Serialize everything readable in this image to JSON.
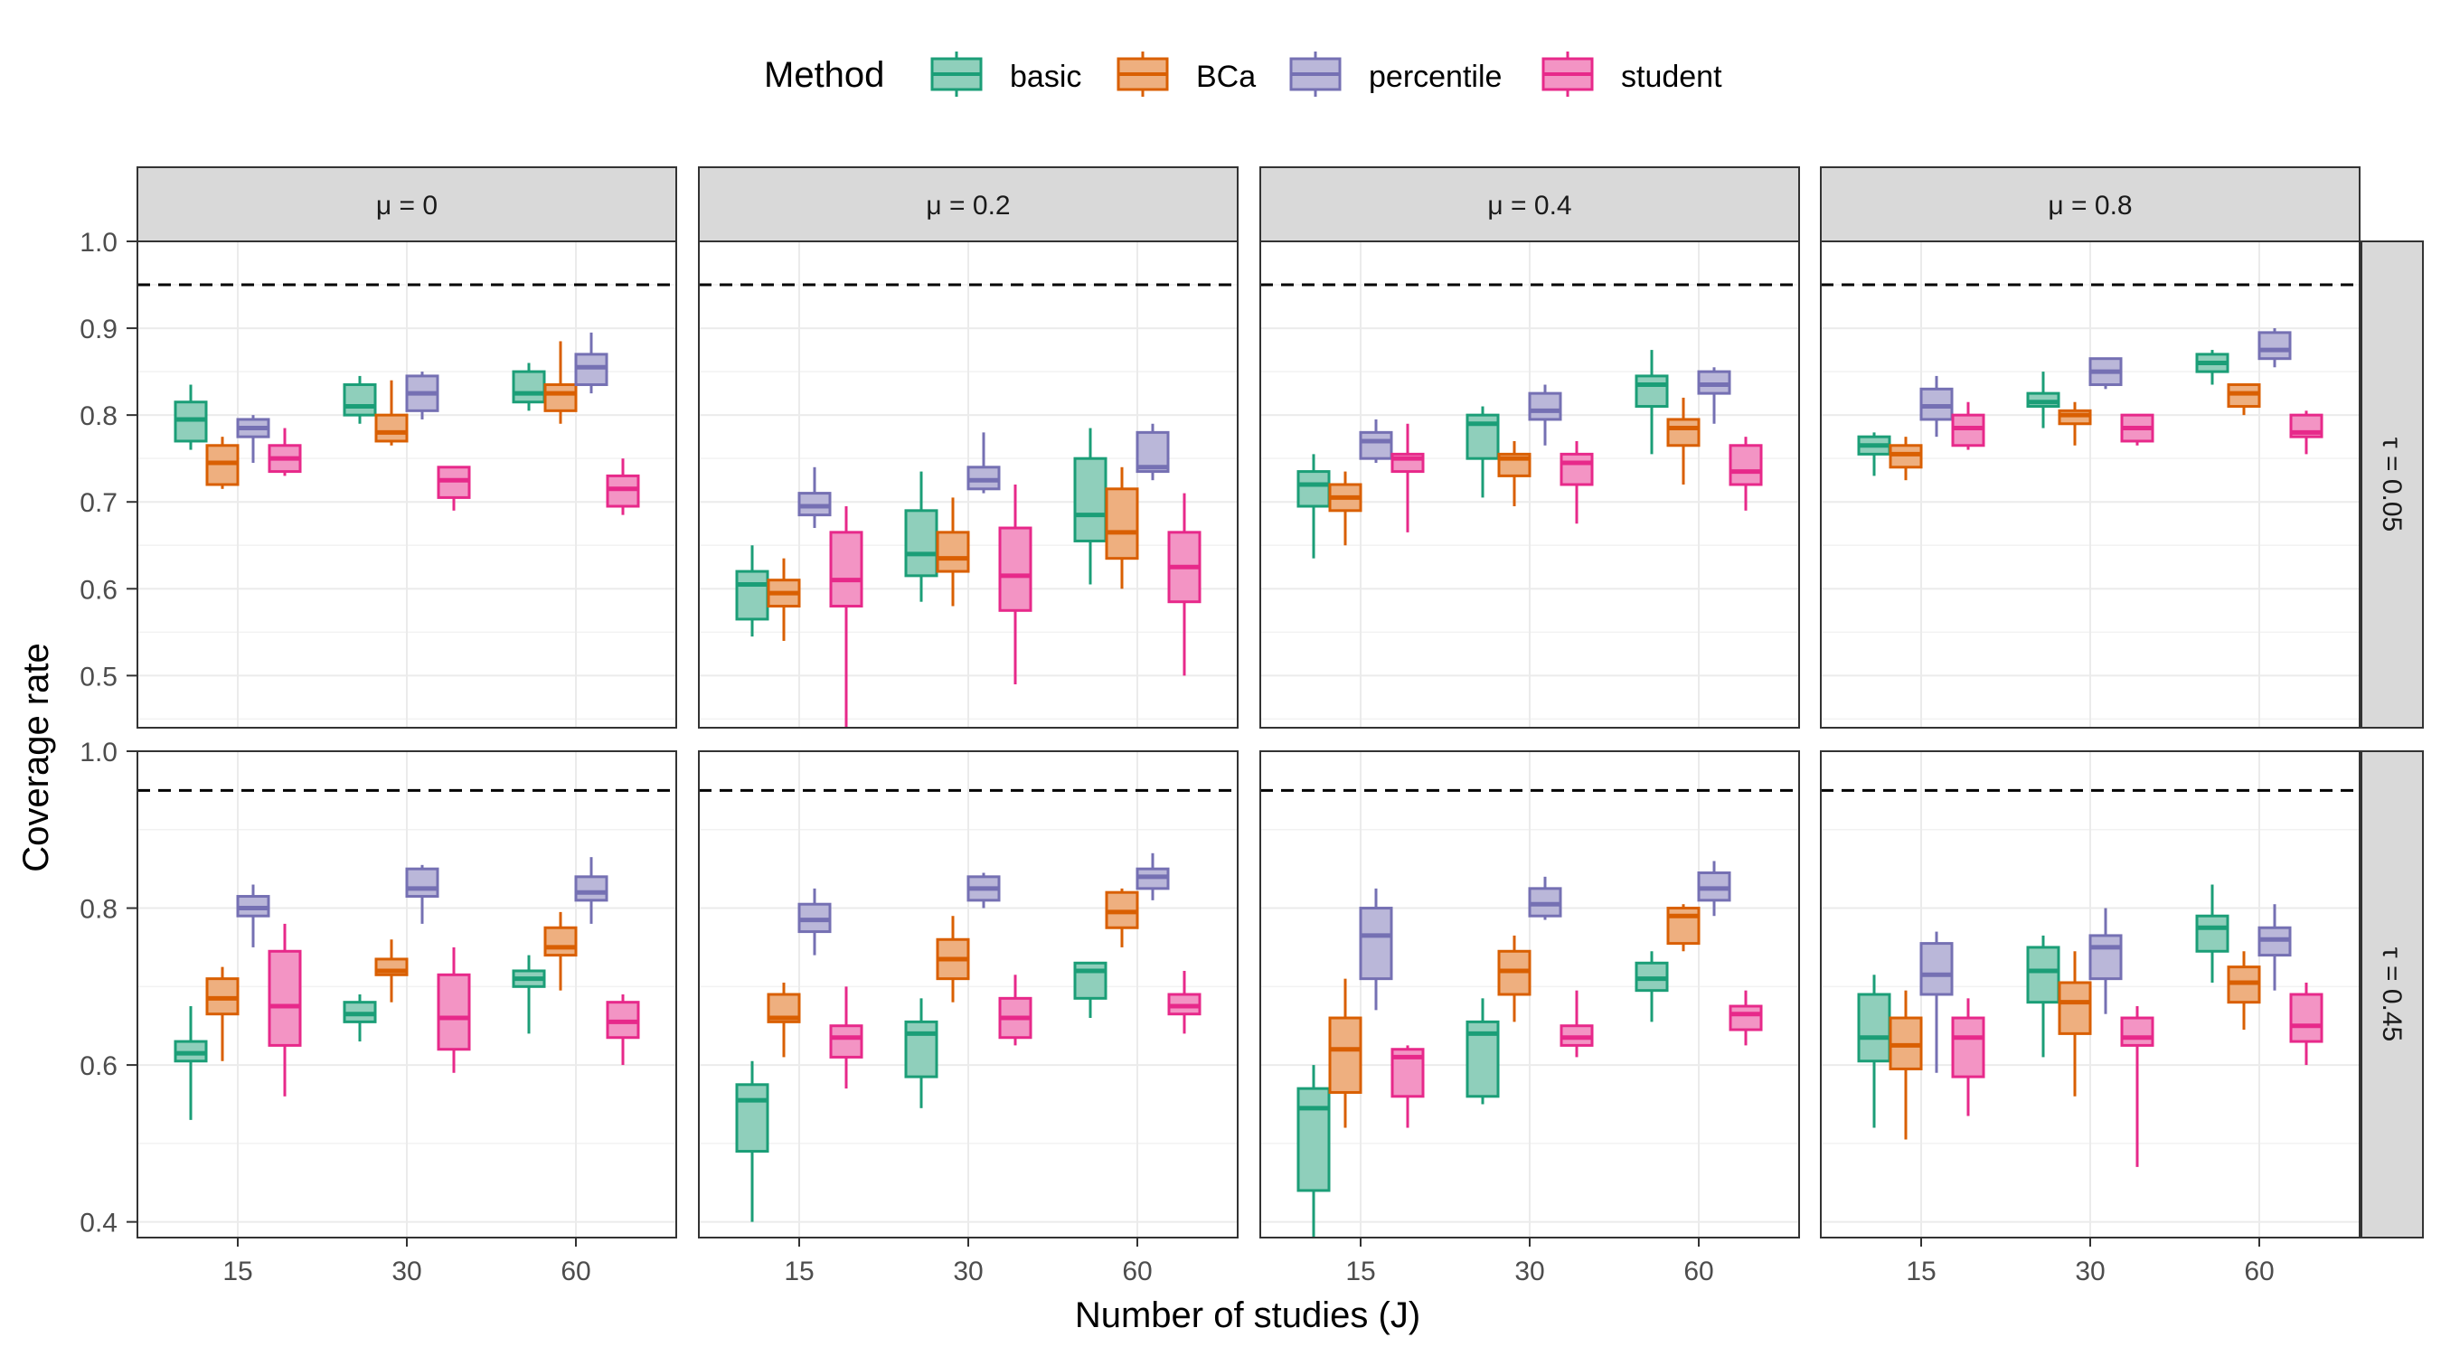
{
  "chart_data": {
    "type": "boxplot",
    "xlabel": "Number of studies (J)",
    "ylabel": "Coverage rate",
    "reference_line": 0.95,
    "categories": [
      "15",
      "30",
      "60"
    ],
    "legend": {
      "title": "Method",
      "position": "top",
      "items": [
        {
          "name": "basic",
          "color": "#1b9e77",
          "fill": "#8fcfbb"
        },
        {
          "name": "BCa",
          "color": "#d95f02",
          "fill": "#eeaf7f"
        },
        {
          "name": "percentile",
          "color": "#7570b3",
          "fill": "#bab7d9"
        },
        {
          "name": "student",
          "color": "#e7298a",
          "fill": "#f394c4"
        }
      ]
    },
    "columns": [
      {
        "label": "μ = 0"
      },
      {
        "label": "μ = 0.2"
      },
      {
        "label": "μ = 0.4"
      },
      {
        "label": "μ = 0.8"
      }
    ],
    "rows": [
      {
        "label": "τ = 0.05",
        "ylim": [
          0.44,
          1.0
        ],
        "yticks": [
          "0.5",
          "0.6",
          "0.7",
          "0.8",
          "0.9",
          "1.0"
        ]
      },
      {
        "label": "τ = 0.45",
        "ylim": [
          0.38,
          1.0
        ],
        "yticks": [
          "0.4",
          "0.6",
          "0.8",
          "1.0"
        ]
      }
    ],
    "boxes": [
      [
        [
          [
            [
              0.76,
              0.77,
              0.795,
              0.815,
              0.835
            ],
            [
              0.715,
              0.72,
              0.745,
              0.765,
              0.775
            ],
            [
              0.745,
              0.775,
              0.785,
              0.795,
              0.8
            ],
            [
              0.73,
              0.735,
              0.75,
              0.765,
              0.785
            ]
          ],
          [
            [
              0.79,
              0.8,
              0.81,
              0.835,
              0.845
            ],
            [
              0.765,
              0.77,
              0.78,
              0.8,
              0.84
            ],
            [
              0.795,
              0.805,
              0.825,
              0.845,
              0.85
            ],
            [
              0.69,
              0.705,
              0.725,
              0.74,
              0.74
            ]
          ],
          [
            [
              0.805,
              0.815,
              0.825,
              0.85,
              0.86
            ],
            [
              0.79,
              0.805,
              0.825,
              0.835,
              0.885
            ],
            [
              0.825,
              0.835,
              0.855,
              0.87,
              0.895
            ],
            [
              0.685,
              0.695,
              0.715,
              0.73,
              0.75
            ]
          ]
        ],
        [
          [
            [
              0.545,
              0.565,
              0.605,
              0.62,
              0.65
            ],
            [
              0.54,
              0.58,
              0.595,
              0.61,
              0.635
            ],
            [
              0.67,
              0.685,
              0.695,
              0.71,
              0.74
            ],
            [
              0.44,
              0.58,
              0.61,
              0.665,
              0.695
            ]
          ],
          [
            [
              0.585,
              0.615,
              0.64,
              0.69,
              0.735
            ],
            [
              0.58,
              0.62,
              0.635,
              0.665,
              0.705
            ],
            [
              0.71,
              0.715,
              0.725,
              0.74,
              0.78
            ],
            [
              0.49,
              0.575,
              0.615,
              0.67,
              0.72
            ]
          ],
          [
            [
              0.605,
              0.655,
              0.685,
              0.75,
              0.785
            ],
            [
              0.6,
              0.635,
              0.665,
              0.715,
              0.74
            ],
            [
              0.725,
              0.735,
              0.74,
              0.78,
              0.79
            ],
            [
              0.5,
              0.585,
              0.625,
              0.665,
              0.71
            ]
          ]
        ],
        [
          [
            [
              0.635,
              0.695,
              0.72,
              0.735,
              0.755
            ],
            [
              0.65,
              0.69,
              0.705,
              0.72,
              0.735
            ],
            [
              0.745,
              0.75,
              0.77,
              0.78,
              0.795
            ],
            [
              0.665,
              0.735,
              0.75,
              0.755,
              0.79
            ]
          ],
          [
            [
              0.705,
              0.75,
              0.79,
              0.8,
              0.81
            ],
            [
              0.695,
              0.73,
              0.75,
              0.755,
              0.77
            ],
            [
              0.765,
              0.795,
              0.805,
              0.825,
              0.835
            ],
            [
              0.675,
              0.72,
              0.745,
              0.755,
              0.77
            ]
          ],
          [
            [
              0.755,
              0.81,
              0.835,
              0.845,
              0.875
            ],
            [
              0.72,
              0.765,
              0.785,
              0.795,
              0.82
            ],
            [
              0.79,
              0.825,
              0.835,
              0.85,
              0.855
            ],
            [
              0.69,
              0.72,
              0.735,
              0.765,
              0.775
            ]
          ]
        ],
        [
          [
            [
              0.73,
              0.755,
              0.765,
              0.775,
              0.78
            ],
            [
              0.725,
              0.74,
              0.755,
              0.765,
              0.775
            ],
            [
              0.775,
              0.795,
              0.81,
              0.83,
              0.845
            ],
            [
              0.76,
              0.765,
              0.785,
              0.8,
              0.815
            ]
          ],
          [
            [
              0.785,
              0.81,
              0.815,
              0.825,
              0.85
            ],
            [
              0.765,
              0.79,
              0.8,
              0.805,
              0.815
            ],
            [
              0.83,
              0.835,
              0.85,
              0.865,
              0.865
            ],
            [
              0.765,
              0.77,
              0.785,
              0.8,
              0.8
            ]
          ],
          [
            [
              0.835,
              0.85,
              0.86,
              0.87,
              0.875
            ],
            [
              0.8,
              0.81,
              0.825,
              0.835,
              0.835
            ],
            [
              0.855,
              0.865,
              0.875,
              0.895,
              0.9
            ],
            [
              0.755,
              0.775,
              0.78,
              0.8,
              0.805
            ]
          ]
        ]
      ],
      [
        [
          [
            [
              0.53,
              0.605,
              0.615,
              0.63,
              0.675
            ],
            [
              0.605,
              0.665,
              0.685,
              0.71,
              0.725
            ],
            [
              0.75,
              0.79,
              0.8,
              0.815,
              0.83
            ],
            [
              0.56,
              0.625,
              0.675,
              0.745,
              0.78
            ]
          ],
          [
            [
              0.63,
              0.655,
              0.665,
              0.68,
              0.69
            ],
            [
              0.68,
              0.715,
              0.72,
              0.735,
              0.76
            ],
            [
              0.78,
              0.815,
              0.825,
              0.85,
              0.855
            ],
            [
              0.59,
              0.62,
              0.66,
              0.715,
              0.75
            ]
          ],
          [
            [
              0.64,
              0.7,
              0.71,
              0.72,
              0.74
            ],
            [
              0.695,
              0.74,
              0.75,
              0.775,
              0.795
            ],
            [
              0.78,
              0.81,
              0.82,
              0.84,
              0.865
            ],
            [
              0.6,
              0.635,
              0.655,
              0.68,
              0.69
            ]
          ]
        ],
        [
          [
            [
              0.4,
              0.49,
              0.555,
              0.575,
              0.605
            ],
            [
              0.61,
              0.655,
              0.66,
              0.69,
              0.705
            ],
            [
              0.74,
              0.77,
              0.785,
              0.805,
              0.825
            ],
            [
              0.57,
              0.61,
              0.635,
              0.65,
              0.7
            ]
          ],
          [
            [
              0.545,
              0.585,
              0.64,
              0.655,
              0.685
            ],
            [
              0.68,
              0.71,
              0.735,
              0.76,
              0.79
            ],
            [
              0.8,
              0.81,
              0.825,
              0.84,
              0.845
            ],
            [
              0.625,
              0.635,
              0.66,
              0.685,
              0.715
            ]
          ],
          [
            [
              0.66,
              0.685,
              0.72,
              0.73,
              0.73
            ],
            [
              0.75,
              0.775,
              0.795,
              0.82,
              0.825
            ],
            [
              0.81,
              0.825,
              0.84,
              0.85,
              0.87
            ],
            [
              0.64,
              0.665,
              0.675,
              0.69,
              0.72
            ]
          ]
        ],
        [
          [
            [
              0.375,
              0.44,
              0.545,
              0.57,
              0.6
            ],
            [
              0.52,
              0.565,
              0.62,
              0.66,
              0.71
            ],
            [
              0.67,
              0.71,
              0.765,
              0.8,
              0.825
            ],
            [
              0.52,
              0.56,
              0.61,
              0.62,
              0.625
            ]
          ],
          [
            [
              0.55,
              0.56,
              0.64,
              0.655,
              0.685
            ],
            [
              0.655,
              0.69,
              0.72,
              0.745,
              0.765
            ],
            [
              0.785,
              0.79,
              0.805,
              0.825,
              0.84
            ],
            [
              0.61,
              0.625,
              0.635,
              0.65,
              0.695
            ]
          ],
          [
            [
              0.655,
              0.695,
              0.71,
              0.73,
              0.745
            ],
            [
              0.745,
              0.755,
              0.79,
              0.8,
              0.805
            ],
            [
              0.79,
              0.81,
              0.825,
              0.845,
              0.86
            ],
            [
              0.625,
              0.645,
              0.665,
              0.675,
              0.695
            ]
          ]
        ],
        [
          [
            [
              0.52,
              0.605,
              0.635,
              0.69,
              0.715
            ],
            [
              0.505,
              0.595,
              0.625,
              0.66,
              0.695
            ],
            [
              0.59,
              0.69,
              0.715,
              0.755,
              0.77
            ],
            [
              0.535,
              0.585,
              0.635,
              0.66,
              0.685
            ]
          ],
          [
            [
              0.61,
              0.68,
              0.72,
              0.75,
              0.765
            ],
            [
              0.56,
              0.64,
              0.68,
              0.705,
              0.745
            ],
            [
              0.665,
              0.71,
              0.75,
              0.765,
              0.8
            ],
            [
              0.47,
              0.625,
              0.635,
              0.66,
              0.675
            ]
          ],
          [
            [
              0.705,
              0.745,
              0.775,
              0.79,
              0.83
            ],
            [
              0.645,
              0.68,
              0.705,
              0.725,
              0.745
            ],
            [
              0.695,
              0.74,
              0.76,
              0.775,
              0.805
            ],
            [
              0.6,
              0.63,
              0.65,
              0.69,
              0.705
            ]
          ]
        ]
      ]
    ]
  }
}
